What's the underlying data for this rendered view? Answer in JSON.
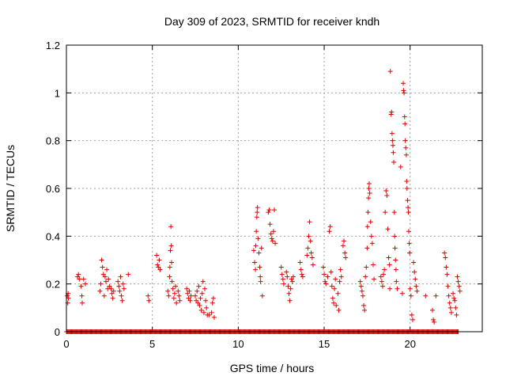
{
  "chart_data": {
    "type": "scatter",
    "title": "Day 309 of 2023, SRMTID for receiver kndh",
    "xlabel": "GPS time / hours",
    "ylabel": "SRMTID / TECUs",
    "xlim": [
      0,
      24.2
    ],
    "ylim": [
      0,
      1.2
    ],
    "xticks": [
      0,
      5,
      10,
      15,
      20
    ],
    "xtick_labels": [
      "0",
      "5",
      "10",
      "15",
      "20"
    ],
    "yticks": [
      0,
      0.2,
      0.4,
      0.6,
      0.8,
      1.0,
      1.2
    ],
    "ytick_labels": [
      "0",
      "0.2",
      "0.4",
      "0.6",
      "0.8",
      "1",
      "1.2"
    ],
    "grid": true,
    "marker": "+",
    "color": "#e00000",
    "zero_band": {
      "x_start": 0.0,
      "x_end": 22.8,
      "step": 0.05,
      "y": 0
    },
    "series": [
      {
        "name": "SRMTID",
        "points": [
          [
            0.05,
            0.15
          ],
          [
            0.08,
            0.12
          ],
          [
            0.1,
            0.16
          ],
          [
            0.12,
            0.14
          ],
          [
            0.65,
            0.23
          ],
          [
            0.7,
            0.24
          ],
          [
            0.75,
            0.22
          ],
          [
            0.85,
            0.19
          ],
          [
            0.9,
            0.15
          ],
          [
            0.92,
            0.12
          ],
          [
            1.0,
            0.22
          ],
          [
            1.1,
            0.2
          ],
          [
            1.95,
            0.17
          ],
          [
            2.0,
            0.2
          ],
          [
            2.05,
            0.3
          ],
          [
            2.1,
            0.27
          ],
          [
            2.15,
            0.24
          ],
          [
            2.2,
            0.15
          ],
          [
            2.25,
            0.23
          ],
          [
            2.3,
            0.21
          ],
          [
            2.35,
            0.26
          ],
          [
            2.4,
            0.18
          ],
          [
            2.45,
            0.22
          ],
          [
            2.5,
            0.19
          ],
          [
            2.6,
            0.18
          ],
          [
            2.65,
            0.16
          ],
          [
            2.7,
            0.14
          ],
          [
            2.75,
            0.17
          ],
          [
            3.0,
            0.21
          ],
          [
            3.05,
            0.19
          ],
          [
            3.1,
            0.17
          ],
          [
            3.15,
            0.23
          ],
          [
            3.2,
            0.15
          ],
          [
            3.25,
            0.13
          ],
          [
            3.3,
            0.2
          ],
          [
            3.35,
            0.18
          ],
          [
            3.6,
            0.24
          ],
          [
            4.75,
            0.15
          ],
          [
            4.8,
            0.13
          ],
          [
            5.25,
            0.32
          ],
          [
            5.3,
            0.28
          ],
          [
            5.35,
            0.27
          ],
          [
            5.4,
            0.3
          ],
          [
            5.45,
            0.26
          ],
          [
            5.9,
            0.17
          ],
          [
            5.95,
            0.15
          ],
          [
            6.0,
            0.23
          ],
          [
            6.02,
            0.27
          ],
          [
            6.05,
            0.34
          ],
          [
            6.08,
            0.44
          ],
          [
            6.1,
            0.36
          ],
          [
            6.12,
            0.29
          ],
          [
            6.15,
            0.21
          ],
          [
            6.2,
            0.18
          ],
          [
            6.25,
            0.14
          ],
          [
            6.3,
            0.16
          ],
          [
            6.35,
            0.19
          ],
          [
            6.4,
            0.12
          ],
          [
            6.5,
            0.17
          ],
          [
            6.55,
            0.15
          ],
          [
            6.6,
            0.13
          ],
          [
            7.0,
            0.18
          ],
          [
            7.05,
            0.16
          ],
          [
            7.1,
            0.14
          ],
          [
            7.15,
            0.17
          ],
          [
            7.2,
            0.13
          ],
          [
            7.25,
            0.15
          ],
          [
            7.5,
            0.15
          ],
          [
            7.55,
            0.13
          ],
          [
            7.6,
            0.17
          ],
          [
            7.65,
            0.12
          ],
          [
            7.7,
            0.19
          ],
          [
            7.75,
            0.11
          ],
          [
            7.8,
            0.14
          ],
          [
            7.85,
            0.09
          ],
          [
            7.9,
            0.16
          ],
          [
            7.95,
            0.21
          ],
          [
            8.0,
            0.08
          ],
          [
            8.05,
            0.18
          ],
          [
            8.1,
            0.13
          ],
          [
            8.15,
            0.1
          ],
          [
            8.2,
            0.07
          ],
          [
            8.3,
            0.07
          ],
          [
            8.45,
            0.08
          ],
          [
            8.5,
            0.12
          ],
          [
            8.55,
            0.14
          ],
          [
            8.6,
            0.06
          ],
          [
            10.9,
            0.34
          ],
          [
            10.95,
            0.29
          ],
          [
            11.0,
            0.26
          ],
          [
            11.02,
            0.36
          ],
          [
            11.05,
            0.42
          ],
          [
            11.08,
            0.48
          ],
          [
            11.1,
            0.5
          ],
          [
            11.12,
            0.52
          ],
          [
            11.15,
            0.39
          ],
          [
            11.2,
            0.33
          ],
          [
            11.25,
            0.27
          ],
          [
            11.28,
            0.23
          ],
          [
            11.3,
            0.21
          ],
          [
            11.35,
            0.35
          ],
          [
            11.4,
            0.15
          ],
          [
            11.75,
            0.5
          ],
          [
            11.8,
            0.51
          ],
          [
            11.85,
            0.45
          ],
          [
            11.9,
            0.41
          ],
          [
            11.95,
            0.39
          ],
          [
            12.0,
            0.38
          ],
          [
            12.05,
            0.42
          ],
          [
            12.1,
            0.51
          ],
          [
            12.15,
            0.37
          ],
          [
            12.5,
            0.27
          ],
          [
            12.55,
            0.24
          ],
          [
            12.6,
            0.22
          ],
          [
            12.65,
            0.2
          ],
          [
            12.8,
            0.25
          ],
          [
            12.85,
            0.23
          ],
          [
            12.9,
            0.19
          ],
          [
            12.95,
            0.16
          ],
          [
            13.0,
            0.13
          ],
          [
            13.05,
            0.18
          ],
          [
            13.1,
            0.22
          ],
          [
            13.15,
            0.21
          ],
          [
            13.2,
            0.23
          ],
          [
            13.6,
            0.29
          ],
          [
            13.65,
            0.26
          ],
          [
            13.7,
            0.24
          ],
          [
            13.75,
            0.23
          ],
          [
            14.0,
            0.32
          ],
          [
            14.05,
            0.35
          ],
          [
            14.1,
            0.4
          ],
          [
            14.15,
            0.46
          ],
          [
            14.2,
            0.38
          ],
          [
            14.25,
            0.33
          ],
          [
            14.3,
            0.31
          ],
          [
            14.35,
            0.28
          ],
          [
            14.95,
            0.27
          ],
          [
            15.0,
            0.24
          ],
          [
            15.05,
            0.21
          ],
          [
            15.1,
            0.2
          ],
          [
            15.2,
            0.23
          ],
          [
            15.3,
            0.42
          ],
          [
            15.35,
            0.44
          ],
          [
            15.4,
            0.25
          ],
          [
            15.45,
            0.19
          ],
          [
            15.5,
            0.14
          ],
          [
            15.55,
            0.12
          ],
          [
            15.6,
            0.18
          ],
          [
            15.65,
            0.22
          ],
          [
            15.7,
            0.11
          ],
          [
            15.8,
            0.16
          ],
          [
            15.85,
            0.09
          ],
          [
            15.9,
            0.21
          ],
          [
            15.95,
            0.26
          ],
          [
            16.0,
            0.23
          ],
          [
            16.1,
            0.36
          ],
          [
            16.15,
            0.38
          ],
          [
            16.2,
            0.33
          ],
          [
            16.25,
            0.31
          ],
          [
            17.1,
            0.21
          ],
          [
            17.15,
            0.19
          ],
          [
            17.2,
            0.17
          ],
          [
            17.25,
            0.15
          ],
          [
            17.3,
            0.11
          ],
          [
            17.35,
            0.09
          ],
          [
            17.4,
            0.23
          ],
          [
            17.45,
            0.27
          ],
          [
            17.5,
            0.35
          ],
          [
            17.52,
            0.44
          ],
          [
            17.55,
            0.5
          ],
          [
            17.58,
            0.56
          ],
          [
            17.6,
            0.6
          ],
          [
            17.62,
            0.62
          ],
          [
            17.65,
            0.58
          ],
          [
            17.7,
            0.46
          ],
          [
            17.75,
            0.4
          ],
          [
            17.8,
            0.37
          ],
          [
            17.85,
            0.28
          ],
          [
            17.9,
            0.22
          ],
          [
            18.3,
            0.23
          ],
          [
            18.35,
            0.21
          ],
          [
            18.4,
            0.19
          ],
          [
            18.45,
            0.24
          ],
          [
            18.5,
            0.26
          ],
          [
            18.55,
            0.5
          ],
          [
            18.6,
            0.59
          ],
          [
            18.65,
            0.57
          ],
          [
            18.7,
            0.43
          ],
          [
            18.75,
            0.31
          ],
          [
            18.8,
            0.28
          ],
          [
            18.82,
            0.18
          ],
          [
            18.85,
            1.09
          ],
          [
            18.9,
            0.91
          ],
          [
            18.92,
            0.92
          ],
          [
            18.95,
            0.83
          ],
          [
            18.97,
            0.8
          ],
          [
            19.0,
            0.78
          ],
          [
            19.02,
            0.75
          ],
          [
            19.05,
            0.71
          ],
          [
            19.08,
            0.5
          ],
          [
            19.1,
            0.4
          ],
          [
            19.12,
            0.35
          ],
          [
            19.15,
            0.3
          ],
          [
            19.18,
            0.26
          ],
          [
            19.2,
            0.21
          ],
          [
            19.25,
            0.18
          ],
          [
            19.45,
            0.69
          ],
          [
            19.55,
            0.16
          ],
          [
            19.6,
            1.04
          ],
          [
            19.62,
            1.01
          ],
          [
            19.65,
            1.0
          ],
          [
            19.68,
            0.9
          ],
          [
            19.7,
            0.87
          ],
          [
            19.72,
            0.8
          ],
          [
            19.75,
            0.77
          ],
          [
            19.78,
            0.74
          ],
          [
            19.8,
            0.63
          ],
          [
            19.82,
            0.6
          ],
          [
            19.85,
            0.55
          ],
          [
            19.88,
            0.52
          ],
          [
            19.9,
            0.5
          ],
          [
            19.92,
            0.42
          ],
          [
            19.95,
            0.37
          ],
          [
            19.97,
            0.33
          ],
          [
            20.0,
            0.18
          ],
          [
            20.05,
            0.15
          ],
          [
            20.1,
            0.07
          ],
          [
            20.15,
            0.05
          ],
          [
            20.2,
            0.29
          ],
          [
            20.25,
            0.25
          ],
          [
            20.3,
            0.22
          ],
          [
            20.35,
            0.19
          ],
          [
            20.4,
            0.17
          ],
          [
            20.9,
            0.15
          ],
          [
            21.3,
            0.09
          ],
          [
            21.35,
            0.05
          ],
          [
            21.4,
            0.04
          ],
          [
            21.5,
            0.15
          ],
          [
            22.0,
            0.33
          ],
          [
            22.05,
            0.31
          ],
          [
            22.1,
            0.27
          ],
          [
            22.15,
            0.24
          ],
          [
            22.2,
            0.19
          ],
          [
            22.25,
            0.15
          ],
          [
            22.3,
            0.12
          ],
          [
            22.35,
            0.1
          ],
          [
            22.4,
            0.08
          ],
          [
            22.5,
            0.16
          ],
          [
            22.55,
            0.14
          ],
          [
            22.6,
            0.13
          ],
          [
            22.65,
            0.1
          ],
          [
            22.7,
            0.07
          ],
          [
            22.75,
            0.23
          ],
          [
            22.8,
            0.21
          ],
          [
            22.85,
            0.19
          ],
          [
            22.9,
            0.17
          ]
        ]
      }
    ]
  }
}
